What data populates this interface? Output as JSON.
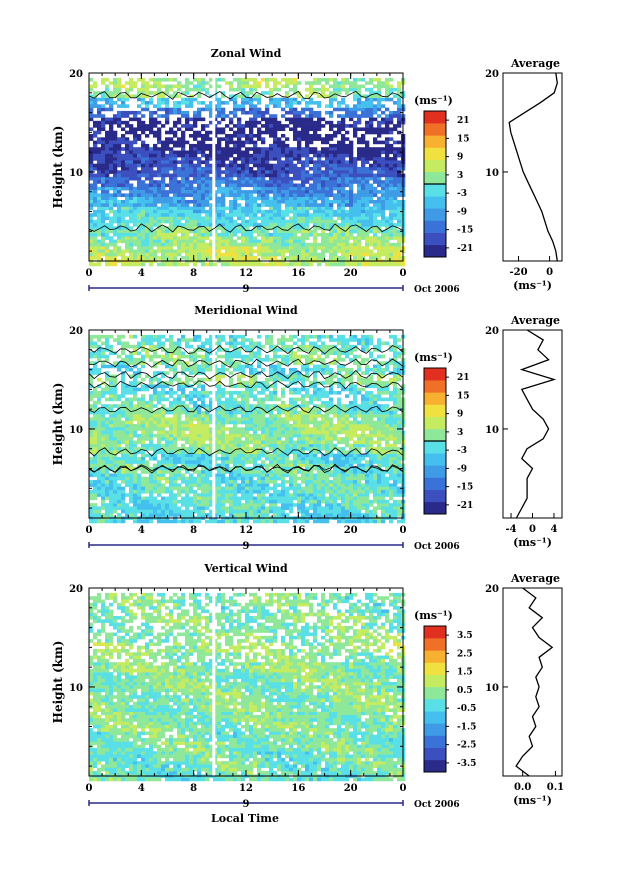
{
  "page": {
    "xlabel": "Local Time",
    "date_label": "Oct 2006",
    "day_label": "9"
  },
  "colors": [
    "#2a2a8a",
    "#3b4fbf",
    "#3a72d8",
    "#3f9be6",
    "#45c0ee",
    "#58e0e6",
    "#8fe89a",
    "#c5ec60",
    "#f0e040",
    "#f8b030",
    "#f07028",
    "#e23020"
  ],
  "chart_data": [
    {
      "type": "heatmap",
      "title": "Zonal Wind",
      "ylabel": "Height (km)",
      "unit_label": "(ms⁻¹)",
      "x_ticks": [
        "0",
        "4",
        "8",
        "12",
        "16",
        "20",
        "0"
      ],
      "y_ticks": [
        "10",
        "20"
      ],
      "xlim": [
        0,
        24
      ],
      "ylim": [
        1,
        20
      ],
      "colorbar": {
        "labels": [
          "21",
          "15",
          "9",
          "3",
          "-3",
          "-9",
          "-15",
          "-21"
        ],
        "range": [
          -24,
          24
        ],
        "contour_level": 0
      },
      "profile": {
        "title": "Average",
        "x_ticks": [
          "-20",
          "0"
        ],
        "xlim": [
          -30,
          8
        ],
        "xunit": "(ms⁻¹)",
        "y_ticks": [
          "10",
          "20"
        ],
        "points": [
          [
            5,
            1
          ],
          [
            4,
            2
          ],
          [
            2,
            3
          ],
          [
            -1,
            4
          ],
          [
            -3,
            5
          ],
          [
            -5,
            6
          ],
          [
            -8,
            7
          ],
          [
            -11,
            8
          ],
          [
            -14,
            9
          ],
          [
            -17,
            10
          ],
          [
            -19,
            11
          ],
          [
            -21,
            12
          ],
          [
            -23,
            13
          ],
          [
            -25,
            14
          ],
          [
            -26,
            15
          ],
          [
            -16,
            16
          ],
          [
            -6,
            17
          ],
          [
            3,
            18
          ],
          [
            5,
            19
          ],
          [
            4,
            20
          ]
        ]
      },
      "rows": [
        {
          "z": 1,
          "u": 6
        },
        {
          "z": 2,
          "u": 5
        },
        {
          "z": 3,
          "u": 3
        },
        {
          "z": 4,
          "u": 1
        },
        {
          "z": 5,
          "u": -2
        },
        {
          "z": 6,
          "u": -4
        },
        {
          "z": 7,
          "u": -8
        },
        {
          "z": 8,
          "u": -11
        },
        {
          "z": 9,
          "u": -14
        },
        {
          "z": 10,
          "u": -17
        },
        {
          "z": 11,
          "u": -19
        },
        {
          "z": 12,
          "u": -21
        },
        {
          "z": 13,
          "u": -22
        },
        {
          "z": 14,
          "u": -24
        },
        {
          "z": 15,
          "u": -22
        },
        {
          "z": 16,
          "u": -14
        },
        {
          "z": 17,
          "u": -6
        },
        {
          "z": 18,
          "u": 2
        },
        {
          "z": 19,
          "u": 4
        }
      ]
    },
    {
      "type": "heatmap",
      "title": "Meridional Wind",
      "ylabel": "Height (km)",
      "unit_label": "(ms⁻¹)",
      "x_ticks": [
        "0",
        "4",
        "8",
        "12",
        "16",
        "20",
        "0"
      ],
      "y_ticks": [
        "10",
        "20"
      ],
      "xlim": [
        0,
        24
      ],
      "ylim": [
        1,
        20
      ],
      "colorbar": {
        "labels": [
          "21",
          "15",
          "9",
          "3",
          "-3",
          "-9",
          "-15",
          "-21"
        ],
        "range": [
          -24,
          24
        ],
        "contour_level": 0
      },
      "profile": {
        "title": "Average",
        "x_ticks": [
          "-4",
          "0",
          "4"
        ],
        "xlim": [
          -5.5,
          5.5
        ],
        "xunit": "(ms⁻¹)",
        "y_ticks": [
          "10",
          "20"
        ],
        "points": [
          [
            -3,
            1
          ],
          [
            -2,
            2
          ],
          [
            -1,
            3
          ],
          [
            -1,
            4
          ],
          [
            -1,
            5
          ],
          [
            0,
            6
          ],
          [
            -2,
            7
          ],
          [
            -1,
            8
          ],
          [
            2,
            9
          ],
          [
            3,
            10
          ],
          [
            2,
            11
          ],
          [
            0,
            12
          ],
          [
            -1,
            13
          ],
          [
            -2,
            14
          ],
          [
            4,
            15
          ],
          [
            -2,
            16
          ],
          [
            3,
            17
          ],
          [
            1,
            18
          ],
          [
            2,
            19
          ],
          [
            -1,
            20
          ]
        ]
      },
      "rows": [
        {
          "z": 1,
          "u": -3
        },
        {
          "z": 2,
          "u": -2
        },
        {
          "z": 3,
          "u": -1
        },
        {
          "z": 4,
          "u": -1
        },
        {
          "z": 5,
          "u": -1
        },
        {
          "z": 6,
          "u": 0
        },
        {
          "z": 7,
          "u": -2
        },
        {
          "z": 8,
          "u": 1
        },
        {
          "z": 9,
          "u": 3
        },
        {
          "z": 10,
          "u": 3
        },
        {
          "z": 11,
          "u": 2
        },
        {
          "z": 12,
          "u": 0
        },
        {
          "z": 13,
          "u": -1
        },
        {
          "z": 14,
          "u": -2
        },
        {
          "z": 15,
          "u": 2
        },
        {
          "z": 16,
          "u": -2
        },
        {
          "z": 17,
          "u": 1
        },
        {
          "z": 18,
          "u": 0
        },
        {
          "z": 19,
          "u": -1
        }
      ]
    },
    {
      "type": "heatmap",
      "title": "Vertical Wind",
      "ylabel": "Height (km)",
      "unit_label": "(ms⁻¹)",
      "x_ticks": [
        "0",
        "4",
        "8",
        "12",
        "16",
        "20",
        "0"
      ],
      "y_ticks": [
        "10",
        "20"
      ],
      "xlim": [
        0,
        24
      ],
      "ylim": [
        1,
        20
      ],
      "colorbar": {
        "labels": [
          "3.5",
          "2.5",
          "1.5",
          "0.5",
          "-0.5",
          "-1.5",
          "-2.5",
          "-3.5"
        ],
        "range": [
          -4,
          4
        ],
        "contour_level": null
      },
      "profile": {
        "title": "Average",
        "x_ticks": [
          "0.0",
          "0.1"
        ],
        "xlim": [
          -0.06,
          0.12
        ],
        "xunit": "(ms⁻¹)",
        "y_ticks": [
          "10",
          "20"
        ],
        "points": [
          [
            0.02,
            1
          ],
          [
            -0.02,
            2
          ],
          [
            0.0,
            3
          ],
          [
            0.03,
            4
          ],
          [
            0.02,
            5
          ],
          [
            0.04,
            6
          ],
          [
            0.03,
            7
          ],
          [
            0.05,
            8
          ],
          [
            0.04,
            9
          ],
          [
            0.05,
            10
          ],
          [
            0.04,
            11
          ],
          [
            0.06,
            12
          ],
          [
            0.05,
            13
          ],
          [
            0.09,
            14
          ],
          [
            0.05,
            15
          ],
          [
            0.03,
            16
          ],
          [
            0.06,
            17
          ],
          [
            0.02,
            18
          ],
          [
            0.04,
            19
          ],
          [
            0.0,
            20
          ]
        ]
      },
      "rows": [
        {
          "z": 1,
          "u": -0.1
        },
        {
          "z": 2,
          "u": 0.0
        },
        {
          "z": 3,
          "u": 0.0
        },
        {
          "z": 4,
          "u": 0.2
        },
        {
          "z": 5,
          "u": 0.1
        },
        {
          "z": 6,
          "u": 0.3
        },
        {
          "z": 7,
          "u": 0.2
        },
        {
          "z": 8,
          "u": 0.3
        },
        {
          "z": 9,
          "u": 0.2
        },
        {
          "z": 10,
          "u": 0.3
        },
        {
          "z": 11,
          "u": 0.2
        },
        {
          "z": 12,
          "u": 0.4
        },
        {
          "z": 13,
          "u": 0.3
        },
        {
          "z": 14,
          "u": 0.6
        },
        {
          "z": 15,
          "u": 0.3
        },
        {
          "z": 16,
          "u": 0.2
        },
        {
          "z": 17,
          "u": 0.3
        },
        {
          "z": 18,
          "u": 0.1
        },
        {
          "z": 19,
          "u": 0.2
        }
      ]
    }
  ]
}
